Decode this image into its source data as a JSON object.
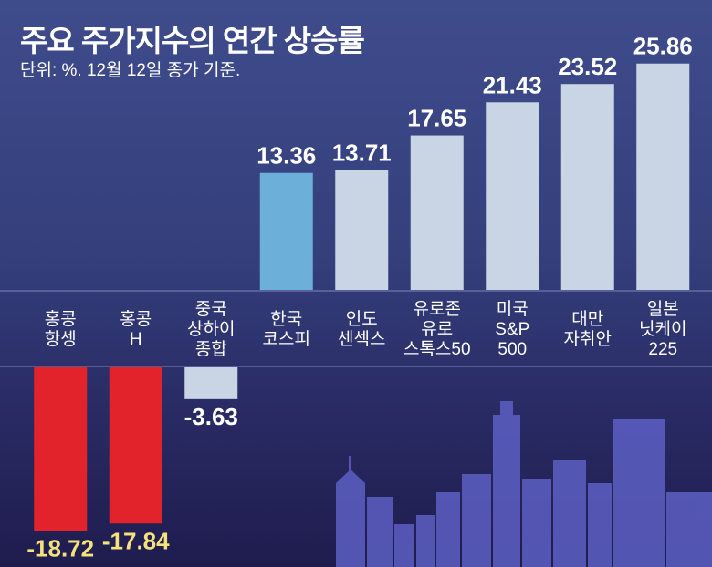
{
  "chart_data": {
    "type": "bar",
    "title": "주요 주가지수의 연간 상승률",
    "subtitle": "단위: %. 12월 12일 종가 기준.",
    "xlabel": "",
    "ylabel": "%",
    "categories": [
      [
        "홍콩",
        "항셍"
      ],
      [
        "홍콩",
        "H"
      ],
      [
        "중국",
        "상하이",
        "종합"
      ],
      [
        "한국",
        "코스피"
      ],
      [
        "인도",
        "센섹스"
      ],
      [
        "유로존",
        "유로",
        "스톡스50"
      ],
      [
        "미국",
        "S&P",
        "500"
      ],
      [
        "대만",
        "자취안"
      ],
      [
        "일본",
        "닛케이",
        "225"
      ]
    ],
    "values": [
      -18.72,
      -17.84,
      -3.63,
      13.36,
      13.71,
      17.65,
      21.43,
      23.52,
      25.86
    ],
    "value_labels": [
      "-18.72",
      "-17.84",
      "-3.63",
      "13.36",
      "13.71",
      "17.65",
      "21.43",
      "23.52",
      "25.86"
    ],
    "highlight_index": 3,
    "ylim": [
      -18.72,
      25.86
    ],
    "grid": false,
    "colors": {
      "positive": "#c9d4e4",
      "highlight": "#6cb0da",
      "negative": "#e3232b",
      "negative_small": "#c9d4e4",
      "positive_label": "#ffffff",
      "negative_label": "#f6e27c"
    }
  }
}
